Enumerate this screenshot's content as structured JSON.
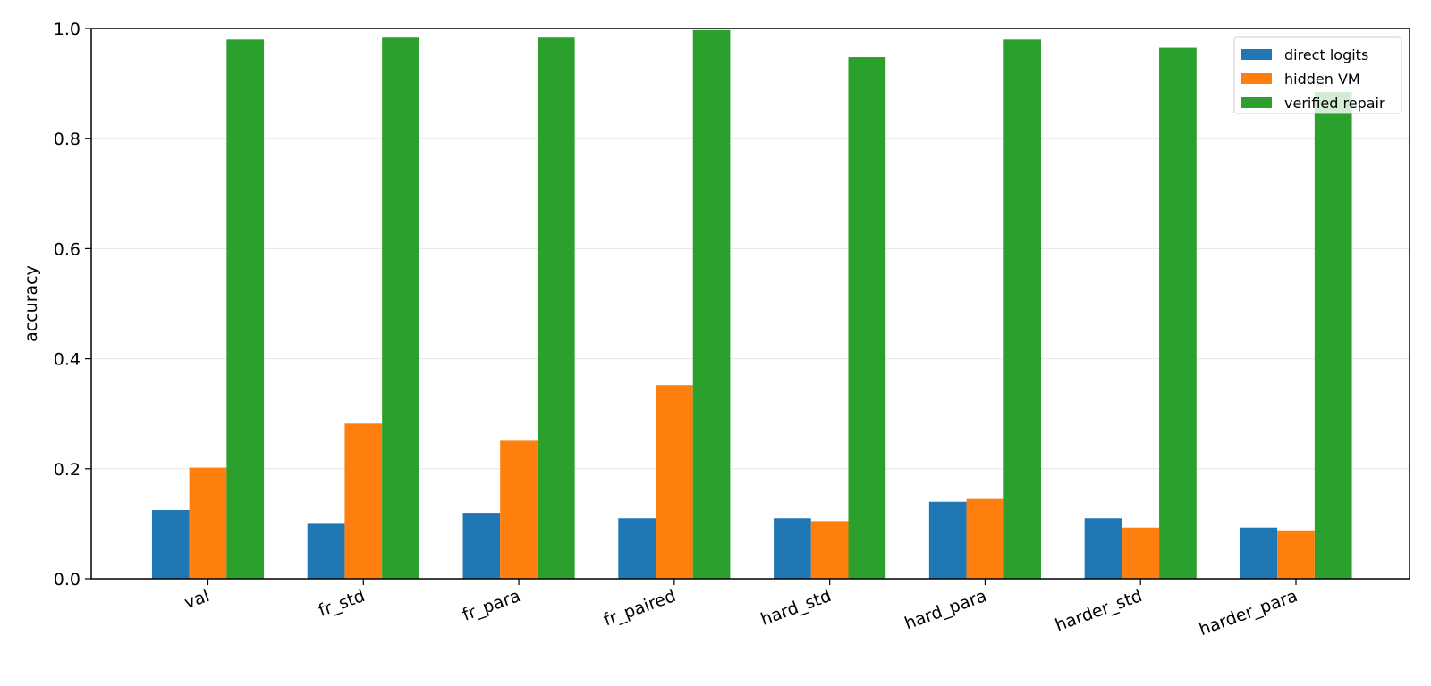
{
  "chart_data": {
    "type": "bar",
    "title": "",
    "xlabel": "",
    "ylabel": "accuracy",
    "ylim": [
      0,
      1.0
    ],
    "yticks": [
      "0.0",
      "0.2",
      "0.4",
      "0.6",
      "0.8",
      "1.0"
    ],
    "grid": "horizontal",
    "legend_position": "top-right",
    "categories": [
      "val",
      "fr_std",
      "fr_para",
      "fr_paired",
      "hard_std",
      "hard_para",
      "harder_std",
      "harder_para"
    ],
    "series": [
      {
        "name": "direct logits",
        "color": "#1f77b4",
        "values": [
          0.125,
          0.1,
          0.12,
          0.11,
          0.11,
          0.14,
          0.11,
          0.093
        ]
      },
      {
        "name": "hidden VM",
        "color": "#ff7f0e",
        "values": [
          0.202,
          0.282,
          0.251,
          0.352,
          0.105,
          0.145,
          0.093,
          0.088
        ]
      },
      {
        "name": "verified repair",
        "color": "#2ca02c",
        "values": [
          0.98,
          0.985,
          0.985,
          0.997,
          0.948,
          0.98,
          0.965,
          0.885
        ]
      }
    ]
  }
}
